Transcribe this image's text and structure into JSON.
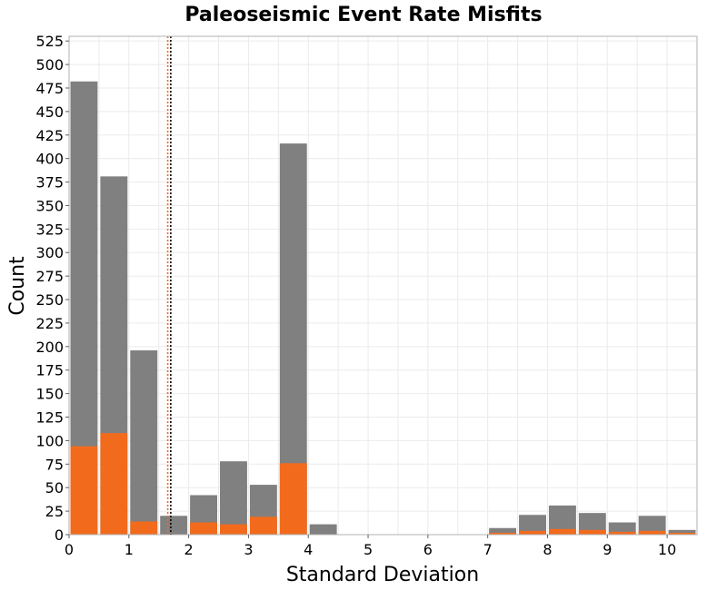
{
  "chart_data": {
    "type": "bar",
    "stacked": "overlay",
    "title": "Paleoseismic Event Rate Misfits",
    "xlabel": "Standard Deviation",
    "ylabel": "Count",
    "xlim": [
      0,
      10.5
    ],
    "ylim": [
      0,
      530
    ],
    "grid": true,
    "legend": "none",
    "x_ticks": [
      0,
      1,
      2,
      3,
      4,
      5,
      6,
      7,
      8,
      9,
      10
    ],
    "y_ticks": [
      0,
      25,
      50,
      75,
      100,
      125,
      150,
      175,
      200,
      225,
      250,
      275,
      300,
      325,
      350,
      375,
      400,
      425,
      450,
      475,
      500,
      525
    ],
    "bin_width": 0.5,
    "bin_centers": [
      0.25,
      0.75,
      1.25,
      1.75,
      2.25,
      2.75,
      3.25,
      3.75,
      4.25,
      4.75,
      5.25,
      5.75,
      6.25,
      6.75,
      7.25,
      7.75,
      8.25,
      8.75,
      9.25,
      9.75,
      10.25
    ],
    "series": [
      {
        "color": "#808080",
        "values": [
          482,
          381,
          196,
          20,
          42,
          78,
          53,
          416,
          11,
          0,
          0,
          0,
          0,
          0,
          7,
          21,
          31,
          23,
          13,
          20,
          5
        ]
      },
      {
        "color": "#f26b1d",
        "values": [
          94,
          108,
          14,
          0,
          13,
          11,
          19,
          76,
          0,
          0,
          0,
          0,
          0,
          0,
          2,
          4,
          6,
          5,
          3,
          4,
          2
        ]
      }
    ],
    "reference_lines": [
      {
        "x": 1.65,
        "color": "#f26b1d",
        "style": "dotted"
      },
      {
        "x": 1.7,
        "color": "#000000",
        "style": "dotted"
      }
    ]
  }
}
